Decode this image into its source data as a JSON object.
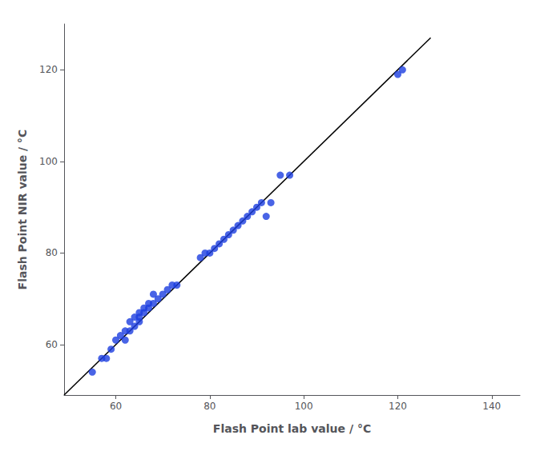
{
  "chart_data": {
    "type": "scatter",
    "xlabel": "Flash Point lab value / °C",
    "ylabel": "Flash Point NIR value / °C",
    "series": [
      {
        "type": "scatter",
        "color": "#1c3de0",
        "x": [
          55,
          57,
          58,
          59,
          60,
          61,
          62,
          62,
          63,
          63,
          64,
          64,
          65,
          65,
          65,
          66,
          66,
          67,
          67,
          68,
          68,
          69,
          70,
          71,
          72,
          73,
          78,
          79,
          80,
          81,
          82,
          83,
          84,
          85,
          86,
          87,
          88,
          89,
          90,
          91,
          92,
          93,
          95,
          97,
          120,
          121
        ],
        "values": [
          54,
          57,
          57,
          59,
          61,
          62,
          61,
          63,
          63,
          65,
          64,
          66,
          65,
          66,
          67,
          67,
          68,
          68,
          69,
          69,
          71,
          70,
          71,
          72,
          73,
          73,
          79,
          80,
          80,
          81,
          82,
          83,
          84,
          85,
          86,
          87,
          88,
          89,
          90,
          91,
          88,
          91,
          97,
          97,
          119,
          120
        ]
      },
      {
        "type": "line",
        "color": "#000000",
        "x": [
          49,
          127
        ],
        "values": [
          49,
          127
        ]
      }
    ],
    "xlim": [
      49,
      146
    ],
    "ylim": [
      49,
      130
    ],
    "xticks": [
      60,
      80,
      100,
      120,
      140
    ],
    "yticks": [
      60,
      80,
      100,
      120
    ],
    "grid": false
  }
}
